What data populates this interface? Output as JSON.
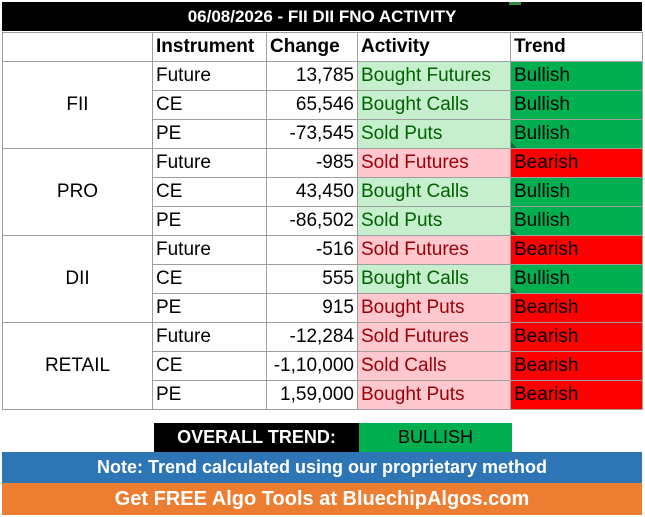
{
  "title": "06/08/2026 - FII DII FNO ACTIVITY",
  "headers": {
    "instrument": "Instrument",
    "change": "Change",
    "activity": "Activity",
    "trend": "Trend"
  },
  "groups": [
    {
      "name": "FII",
      "rows": [
        {
          "instrument": "Future",
          "change": "13,785",
          "activity": "Bought Futures",
          "activity_type": "buy",
          "trend": "Bullish"
        },
        {
          "instrument": "CE",
          "change": "65,546",
          "activity": "Bought Calls",
          "activity_type": "buy",
          "trend": "Bullish"
        },
        {
          "instrument": "PE",
          "change": "-73,545",
          "activity": "Sold Puts",
          "activity_type": "buy",
          "trend": "Bullish"
        }
      ]
    },
    {
      "name": "PRO",
      "rows": [
        {
          "instrument": "Future",
          "change": "-985",
          "activity": "Sold Futures",
          "activity_type": "sell",
          "trend": "Bearish"
        },
        {
          "instrument": "CE",
          "change": "43,450",
          "activity": "Bought Calls",
          "activity_type": "buy",
          "trend": "Bullish"
        },
        {
          "instrument": "PE",
          "change": "-86,502",
          "activity": "Sold Puts",
          "activity_type": "buy",
          "trend": "Bullish"
        }
      ]
    },
    {
      "name": "DII",
      "rows": [
        {
          "instrument": "Future",
          "change": "-516",
          "activity": "Sold Futures",
          "activity_type": "sell",
          "trend": "Bearish"
        },
        {
          "instrument": "CE",
          "change": "555",
          "activity": "Bought Calls",
          "activity_type": "buy",
          "trend": "Bullish"
        },
        {
          "instrument": "PE",
          "change": "915",
          "activity": "Bought Puts",
          "activity_type": "sell",
          "trend": "Bearish"
        }
      ]
    },
    {
      "name": "RETAIL",
      "rows": [
        {
          "instrument": "Future",
          "change": "-12,284",
          "activity": "Sold Futures",
          "activity_type": "sell",
          "trend": "Bearish"
        },
        {
          "instrument": "CE",
          "change": "-1,10,000",
          "activity": "Sold Calls",
          "activity_type": "sell",
          "trend": "Bearish"
        },
        {
          "instrument": "PE",
          "change": "1,59,000",
          "activity": "Bought Puts",
          "activity_type": "sell",
          "trend": "Bearish"
        }
      ]
    }
  ],
  "overall": {
    "label": "OVERALL TREND:",
    "value": "BULLISH"
  },
  "note": "Note: Trend calculated using our proprietary method",
  "promo": "Get FREE Algo Tools at BluechipAlgos.com",
  "colors": {
    "bullish": "#00b050",
    "bearish": "#ff0000",
    "buy_fill": "#c6efce",
    "buy_text": "#006100",
    "sell_fill": "#ffc7ce",
    "sell_text": "#9c0006",
    "note_bar": "#2e75b6",
    "promo_bar": "#ed7d31"
  }
}
